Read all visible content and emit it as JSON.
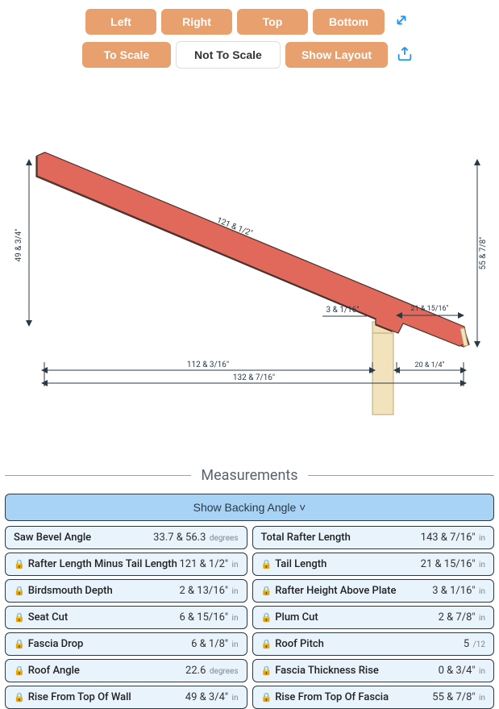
{
  "toolbar": {
    "row1": {
      "left": "Left",
      "right": "Right",
      "top": "Top",
      "bottom": "Bottom"
    },
    "row2": {
      "toScale": "To Scale",
      "notToScale": "Not To Scale",
      "showLayout": "Show Layout"
    }
  },
  "diagram": {
    "rafter_color": "#e0695c",
    "rafter_stroke": "#4a2f2a",
    "wall_color": "#f2e3bc",
    "wall_stroke": "#b8a979",
    "fascia_color": "#f2e3bc",
    "dim_color": "#2b3945",
    "labels": {
      "rise_left": "49 & 3/4\"",
      "rise_right": "55 & 7/8\"",
      "rafter_len": "121 & 1/2\"",
      "birdsmouth_h": "3 & 1/16\"",
      "tail": "21 & 15/16\"",
      "run": "112 & 3/16\"",
      "total_run": "132 & 7/16\"",
      "overhang": "20 & 1/4\""
    }
  },
  "section_title": "Measurements",
  "backing_button": "Show Backing Angle ˅",
  "measurements": [
    {
      "locked": false,
      "label": "Saw Bevel Angle",
      "value": "33.7 & 56.3",
      "unit": "degrees"
    },
    {
      "locked": false,
      "label": "Total Rafter Length",
      "value": "143 & 7/16\"",
      "unit": "in"
    },
    {
      "locked": true,
      "label": "Rafter Length Minus Tail Length",
      "value": "121 & 1/2\"",
      "unit": "in"
    },
    {
      "locked": true,
      "label": "Tail Length",
      "value": "21 & 15/16\"",
      "unit": "in"
    },
    {
      "locked": true,
      "label": "Birdsmouth Depth",
      "value": "2 & 13/16\"",
      "unit": "in"
    },
    {
      "locked": true,
      "label": "Rafter Height Above Plate",
      "value": "3 & 1/16\"",
      "unit": "in"
    },
    {
      "locked": true,
      "label": "Seat Cut",
      "value": "6 & 15/16\"",
      "unit": "in"
    },
    {
      "locked": true,
      "label": "Plum Cut",
      "value": "2 & 7/8\"",
      "unit": "in"
    },
    {
      "locked": true,
      "label": "Fascia Drop",
      "value": "6 & 1/8\"",
      "unit": "in"
    },
    {
      "locked": true,
      "label": "Roof Pitch",
      "value": "5",
      "unit": "/12"
    },
    {
      "locked": true,
      "label": "Roof Angle",
      "value": "22.6",
      "unit": "degrees"
    },
    {
      "locked": true,
      "label": "Fascia Thickness Rise",
      "value": "0 & 3/4\"",
      "unit": "in"
    },
    {
      "locked": true,
      "label": "Rise From Top Of Wall",
      "value": "49 & 3/4\"",
      "unit": "in"
    },
    {
      "locked": true,
      "label": "Rise From Top Of Fascia",
      "value": "55 & 7/8\"",
      "unit": "in"
    }
  ]
}
